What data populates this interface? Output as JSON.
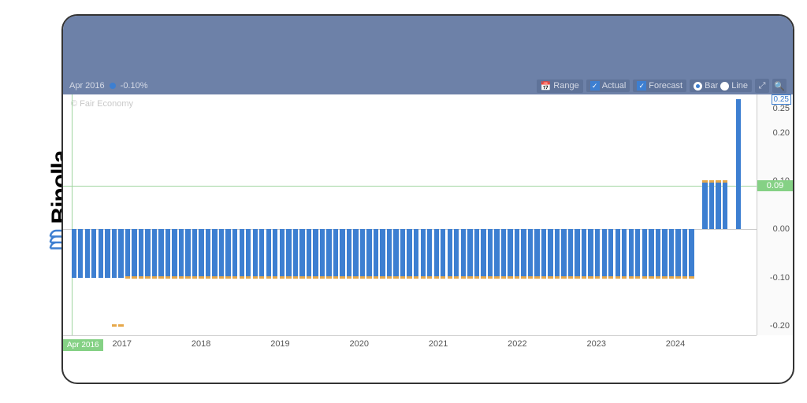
{
  "brand": {
    "name": "Binolla"
  },
  "toolbar": {
    "date_label": "Apr 2016",
    "value_label": "-0.10%",
    "range_label": "Range",
    "actual_label": "Actual",
    "actual_checked": true,
    "forecast_label": "Forecast",
    "forecast_checked": true,
    "bar_label": "Bar",
    "line_label": "Line",
    "view_mode": "bar"
  },
  "chart": {
    "type": "bar",
    "watermark": "© Fair Economy",
    "x_start_label": "Apr 2016",
    "x_ticks": [
      "2017",
      "2018",
      "2019",
      "2020",
      "2021",
      "2022",
      "2023",
      "2024"
    ],
    "x_tick_positions_pct": [
      8.5,
      19.9,
      31.3,
      42.7,
      54.1,
      65.5,
      76.9,
      88.3
    ],
    "y_ticks": [
      {
        "v": 0.25,
        "label": "0.25"
      },
      {
        "v": 0.2,
        "label": "0.20"
      },
      {
        "v": 0.1,
        "label": "0.10"
      },
      {
        "v": 0.0,
        "label": "0.00"
      },
      {
        "v": -0.1,
        "label": "-0.10"
      },
      {
        "v": -0.2,
        "label": "-0.20"
      }
    ],
    "y_min": -0.22,
    "y_max": 0.28,
    "y_current": {
      "v": 0.09,
      "label": "0.09"
    },
    "y_top_box": "0.25",
    "zero": 0.0,
    "bar_color": "#3d7fd1",
    "forecast_color": "#e6a84a",
    "gridline_color": "#9fd49f",
    "bar_gap_pct": 0.25,
    "plot_left_pad_pct": 1.2,
    "plot_right_pad_pct": 2.0,
    "num_bars": 100,
    "actual_values": {
      "default": -0.1,
      "overrides": {
        "0": -0.1,
        "93": 0.0,
        "94": 0.1,
        "95": 0.1,
        "96": 0.1,
        "97": 0.1,
        "98": 0.0,
        "99": 0.27
      },
      "skip": [
        93,
        98
      ]
    },
    "forecast_values": {
      "default": -0.1,
      "overrides": {
        "0": null,
        "1": null,
        "2": null,
        "3": null,
        "4": null,
        "5": null,
        "6": -0.2,
        "7": -0.2,
        "93": null,
        "94": 0.1,
        "95": 0.1,
        "96": 0.1,
        "97": 0.1,
        "98": null,
        "99": null
      },
      "default_start": 8,
      "default_end": 92
    }
  }
}
